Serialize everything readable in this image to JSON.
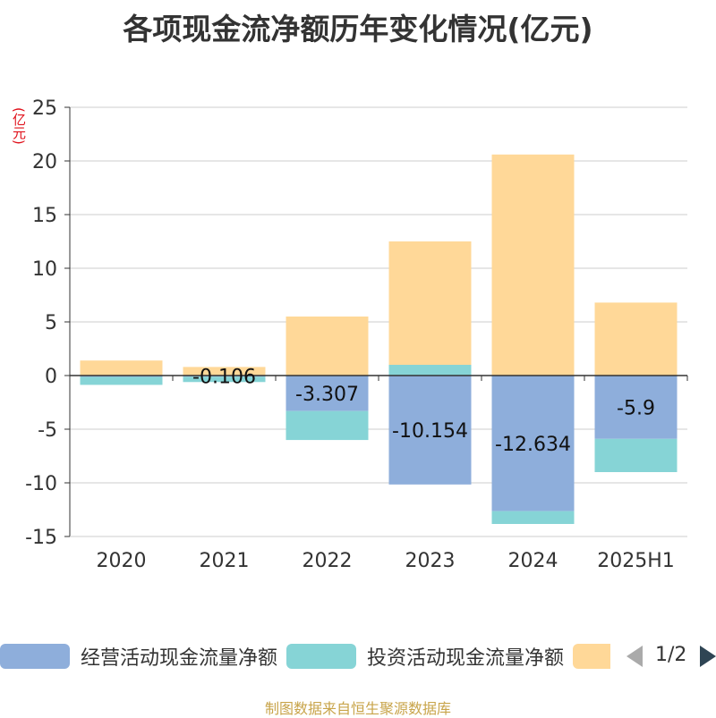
{
  "title": "各项现金流净额历年变化情况(亿元)",
  "source": "制图数据来自恒生聚源数据库",
  "pager": {
    "text": "1/2"
  },
  "colors": {
    "operating": "#8eaedb",
    "investing": "#86d4d6",
    "financing": "#ffd898",
    "axis": "#333333",
    "grid": "#cccccc",
    "unit": "#e0101a",
    "source": "#c8a44a",
    "pager_active": "#2f4554",
    "pager_inactive": "#aaaaaa"
  },
  "chart_data": {
    "type": "bar",
    "stacked": true,
    "unit_label": "(亿元)",
    "categories": [
      "2020",
      "2021",
      "2022",
      "2023",
      "2024",
      "2025H1"
    ],
    "ylim": [
      -15,
      25
    ],
    "yticks": [
      -15,
      -10,
      -5,
      0,
      5,
      10,
      15,
      20,
      25
    ],
    "grid": true,
    "legend_position": "bottom",
    "series": [
      {
        "name": "经营活动现金流量净额",
        "values": [
          -0.12,
          -0.106,
          -3.307,
          -10.154,
          -12.634,
          -5.9
        ],
        "labels": [
          "",
          "-0.106",
          "-3.307",
          "-10.154",
          "-12.634",
          "-5.9"
        ]
      },
      {
        "name": "投资活动现金流量净额",
        "values": [
          -0.75,
          -0.5,
          -2.7,
          1.0,
          -1.2,
          -3.1
        ]
      },
      {
        "name": "",
        "values": [
          1.4,
          0.8,
          5.5,
          11.5,
          20.6,
          6.8
        ]
      }
    ]
  }
}
